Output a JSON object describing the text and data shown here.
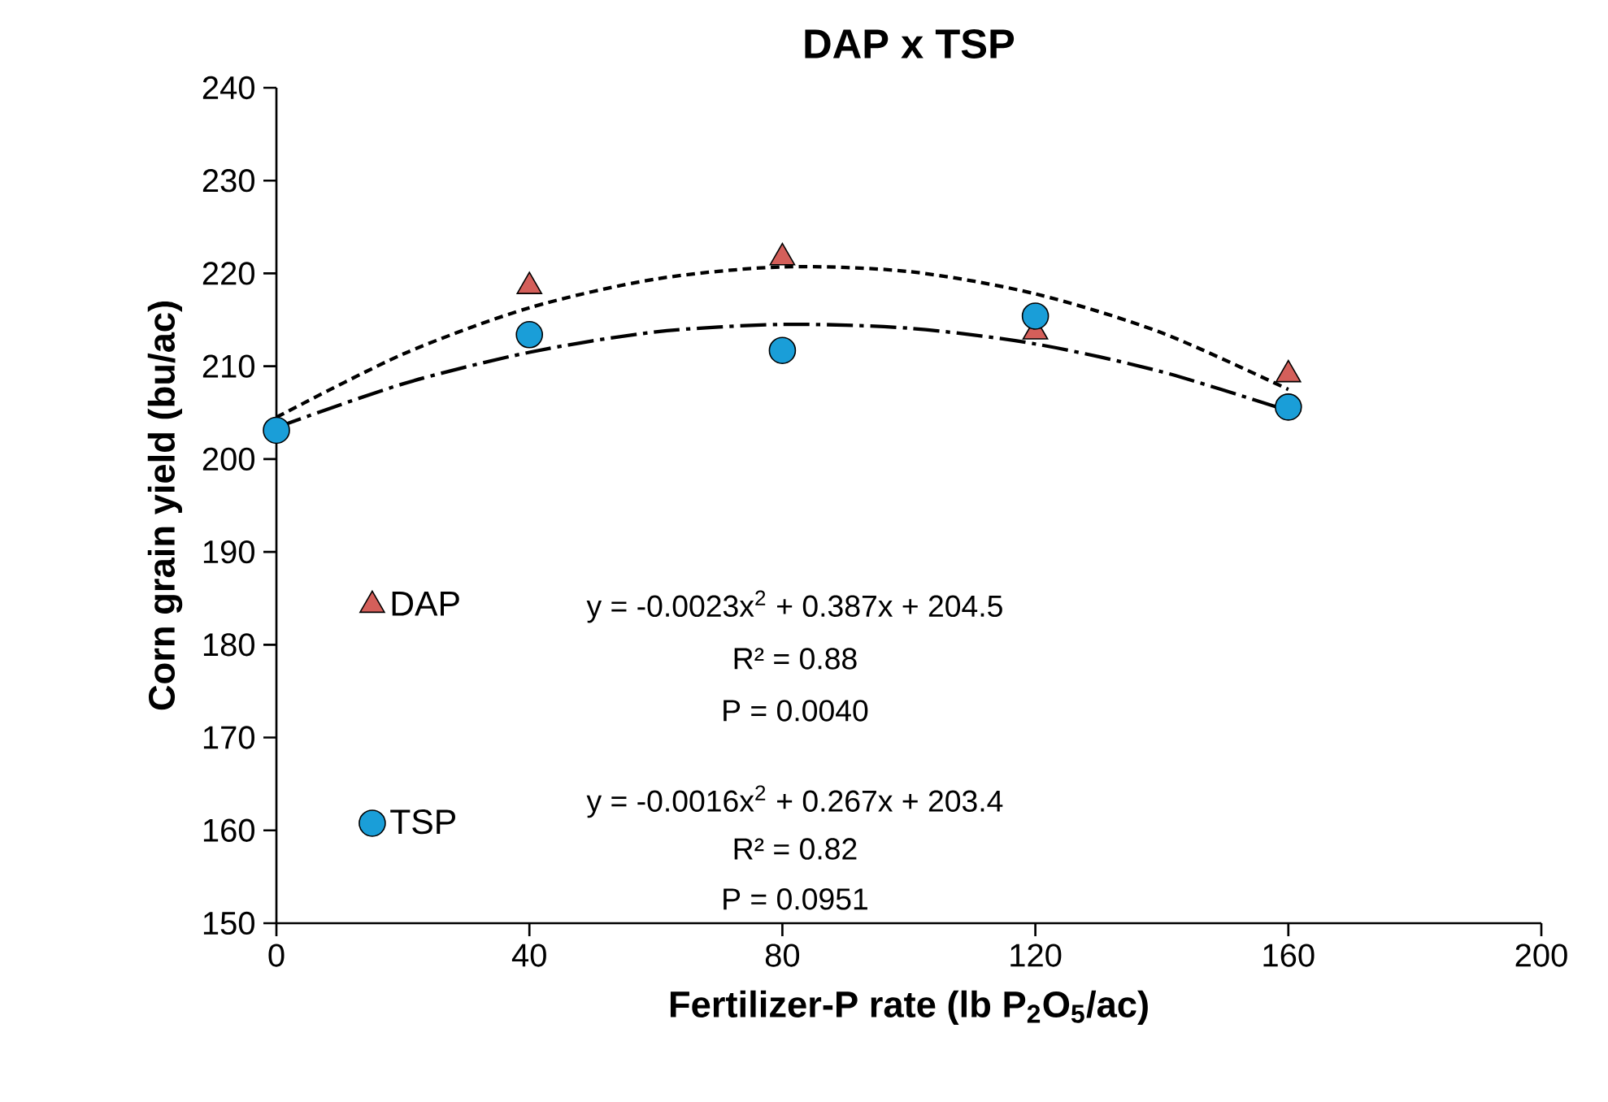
{
  "chart_data": {
    "type": "scatter",
    "title": "DAP x TSP",
    "xlabel": "Fertilizer-P rate (lb P$_{2}$O$_{5}$/ac)",
    "ylabel": "Corn grain yield (bu/ac)",
    "xlim": [
      0,
      200
    ],
    "xticks": [
      0,
      40,
      80,
      120,
      160,
      200
    ],
    "ylim": [
      150,
      240
    ],
    "yticks": [
      150,
      160,
      170,
      180,
      190,
      200,
      210,
      220,
      230,
      240
    ],
    "grid": false,
    "legend": "left",
    "x": [
      0,
      40,
      80,
      120,
      160
    ],
    "series": [
      {
        "name": "DAP",
        "color": "#d45f5a",
        "marker": "triangle",
        "values": [
          null,
          218.6,
          221.7,
          213.7,
          209.1
        ]
      },
      {
        "name": "TSP",
        "color": "#1a9ed8",
        "marker": "circle",
        "values": [
          203.1,
          213.4,
          211.7,
          215.4,
          205.6
        ]
      },
      {
        "type": "line",
        "color": "#000000",
        "marker": "none",
        "line_style": "dotted",
        "x": [
          0,
          20,
          40,
          60,
          80,
          100,
          120,
          140,
          160
        ],
        "values": [
          204.5,
          211.3,
          216.3,
          219.4,
          220.7,
          220.2,
          217.8,
          213.6,
          207.5
        ]
      },
      {
        "type": "line",
        "color": "#000000",
        "marker": "none",
        "line_style": "dashed",
        "x": [
          0,
          20,
          40,
          60,
          80,
          100,
          120,
          140,
          160
        ],
        "values": [
          203.4,
          208.1,
          211.5,
          213.7,
          214.5,
          214.1,
          212.4,
          209.4,
          205.2
        ]
      }
    ],
    "annotations": [
      "y = -0.0023x$^{2}$ + 0.387x + 204.5",
      "R² = 0.88",
      "P = 0.0040",
      "y = -0.0016x$^{2}$ + 0.267x + 203.4",
      "R² = 0.82",
      "P = 0.0951"
    ]
  }
}
